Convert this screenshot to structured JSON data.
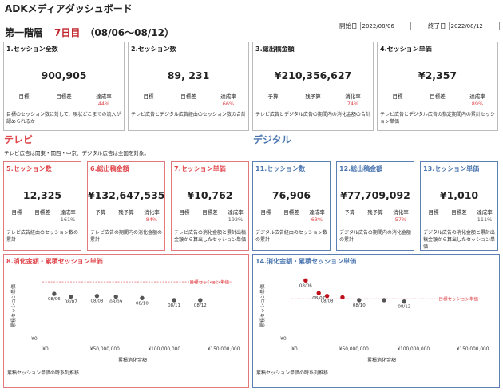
{
  "app_title": "ADKメディアダッシュボード",
  "stage": {
    "label": "第一階層",
    "day": "7日目",
    "range": "（08/06～08/12）"
  },
  "dates": {
    "start_label": "開始日",
    "start_value": "2022/08/06",
    "end_label": "終了日",
    "end_value": "2022/08/12"
  },
  "top_cards": [
    {
      "title": "1.セッション全数",
      "value": "900,905",
      "labels": [
        "目標",
        "目標差",
        "達成率"
      ],
      "values": [
        "",
        "",
        "44%"
      ],
      "desc": "目標のセッション数に対して、現状どこまでの流入が認められるか"
    },
    {
      "title": "2.セッション数",
      "value": "89, 231",
      "labels": [
        "目標",
        "目標差",
        "達成率"
      ],
      "values": [
        "",
        "",
        "66%"
      ],
      "desc": "テレビ広告とデジタル広告経由のセッション数の合計"
    },
    {
      "title": "3.総出稿金額",
      "value": "¥210,356,627",
      "labels": [
        "予算",
        "残予算",
        "消化率"
      ],
      "values": [
        "",
        "",
        "74%"
      ],
      "desc": "テレビ広告とデジタル広告の期間内の消化金額の合計"
    },
    {
      "title": "4.セッション単価",
      "value": "¥2,357",
      "labels": [
        "目標",
        "目標差",
        "達成率"
      ],
      "values": [
        "",
        "",
        "89%"
      ],
      "desc": "テレビ広告とデジタル広告の指定期間内の累計セッション単価"
    }
  ],
  "tv_section": {
    "title": "テレビ",
    "note": "テレビ広告は関東・関西・中京、デジタル広告は全国を対象。"
  },
  "digital_section": {
    "title": "デジタル"
  },
  "tv_cards": [
    {
      "title": "5.セッション数",
      "value": "12,325",
      "labels": [
        "目標",
        "目標差",
        "達成率"
      ],
      "values": [
        "",
        "",
        "161%"
      ],
      "rate_color": "gray",
      "desc": "テレビ広告経由のセッション数の累計"
    },
    {
      "title": "6.総出稿金額",
      "value": "¥132,647,535",
      "labels": [
        "予算",
        "残予算",
        "消化率"
      ],
      "values": [
        "",
        "",
        "84%"
      ],
      "rate_color": "red",
      "desc": "テレビ広告の期間内の消化金額の累計"
    },
    {
      "title": "7.セッション単価",
      "value": "¥10,762",
      "labels": [
        "目標",
        "目標差",
        "達成率"
      ],
      "values": [
        "",
        "",
        "192%"
      ],
      "rate_color": "gray",
      "desc": "テレビ広告の消化金額と累計出稿金額から算出したセッション単価"
    }
  ],
  "digital_cards": [
    {
      "title": "11.セッション数",
      "value": "76,906",
      "labels": [
        "目標",
        "目標差",
        "達成率"
      ],
      "values": [
        "",
        "",
        "63%"
      ],
      "rate_color": "red",
      "desc": "デジタル広告経由のセッション数の累計"
    },
    {
      "title": "12.総出稿金額",
      "value": "¥77,709,092",
      "labels": [
        "予算",
        "残予算",
        "消化率"
      ],
      "values": [
        "",
        "",
        "57%"
      ],
      "rate_color": "red",
      "desc": "デジタル広告の期間内の消化金額の累計"
    },
    {
      "title": "13.セッション単価",
      "value": "¥1,010",
      "labels": [
        "目標",
        "目標差",
        "達成率"
      ],
      "values": [
        "",
        "",
        "111%"
      ],
      "rate_color": "gray",
      "desc": "デジタル広告の消化金額と累計出稿金額から算出したセッション単価"
    }
  ],
  "chart_data": [
    {
      "type": "scatter",
      "title": "8.消化金額・累積セッション単価",
      "xlabel": "累積消化金額",
      "ylabel": "累積セッション単価",
      "xlim": [
        0,
        160000000
      ],
      "x_ticks": [
        {
          "v": 0,
          "label": "¥0"
        },
        {
          "v": 50000000,
          "label": "¥50,000,000"
        },
        {
          "v": 100000000,
          "label": "¥100,000,000"
        },
        {
          "v": 150000000,
          "label": "¥150,000,000"
        }
      ],
      "y_tick_label": "¥0",
      "target_label": "目標セッション単価",
      "note": "累積セッション単価の時系列推移",
      "points": [
        {
          "label": "08/06",
          "x": 10000000,
          "y": 0.67,
          "highlight": false
        },
        {
          "label": "08/07",
          "x": 24000000,
          "y": 0.63,
          "highlight": false
        },
        {
          "label": "08/08",
          "x": 46000000,
          "y": 0.64,
          "highlight": false
        },
        {
          "label": "08/09",
          "x": 62000000,
          "y": 0.63,
          "highlight": false
        },
        {
          "label": "08/10",
          "x": 84000000,
          "y": 0.61,
          "highlight": false
        },
        {
          "label": "08/11",
          "x": 111000000,
          "y": 0.58,
          "highlight": false
        },
        {
          "label": "08/12",
          "x": 133000000,
          "y": 0.58,
          "highlight": false
        }
      ],
      "target_y": 0.84
    },
    {
      "type": "scatter",
      "title": "14.消化金額・累積セッション単価",
      "xlabel": "累積消化金額",
      "ylabel": "累積セッション単価",
      "xlim": [
        0,
        160000000
      ],
      "x_ticks": [
        {
          "v": 0,
          "label": "¥0"
        },
        {
          "v": 50000000,
          "label": "¥50,000,000"
        },
        {
          "v": 100000000,
          "label": "¥100,000,000"
        },
        {
          "v": 150000000,
          "label": "¥150,000,000"
        }
      ],
      "y_tick_label": "¥0",
      "target_label": "目標セッション単価",
      "note": "累積セッション単価の時系列推移",
      "points": [
        {
          "label": "08/06",
          "x": 12000000,
          "y": 0.86,
          "highlight": true
        },
        {
          "label": "08/07",
          "x": 23000000,
          "y": 0.68,
          "highlight": true
        },
        {
          "label": "08/08",
          "x": 30000000,
          "y": 0.64,
          "highlight": true
        },
        {
          "label": "",
          "x": 43000000,
          "y": 0.62,
          "highlight": true
        },
        {
          "label": "08/10",
          "x": 57000000,
          "y": 0.58,
          "highlight": false
        },
        {
          "label": "",
          "x": 78000000,
          "y": 0.58,
          "highlight": false
        },
        {
          "label": "08/12",
          "x": 95000000,
          "y": 0.56,
          "highlight": false
        }
      ],
      "target_y": 0.6
    }
  ],
  "colors": {
    "red": "#e0474c",
    "blue": "#4b76b0",
    "dot": "#555555",
    "dot_hl": "#c0101a"
  }
}
